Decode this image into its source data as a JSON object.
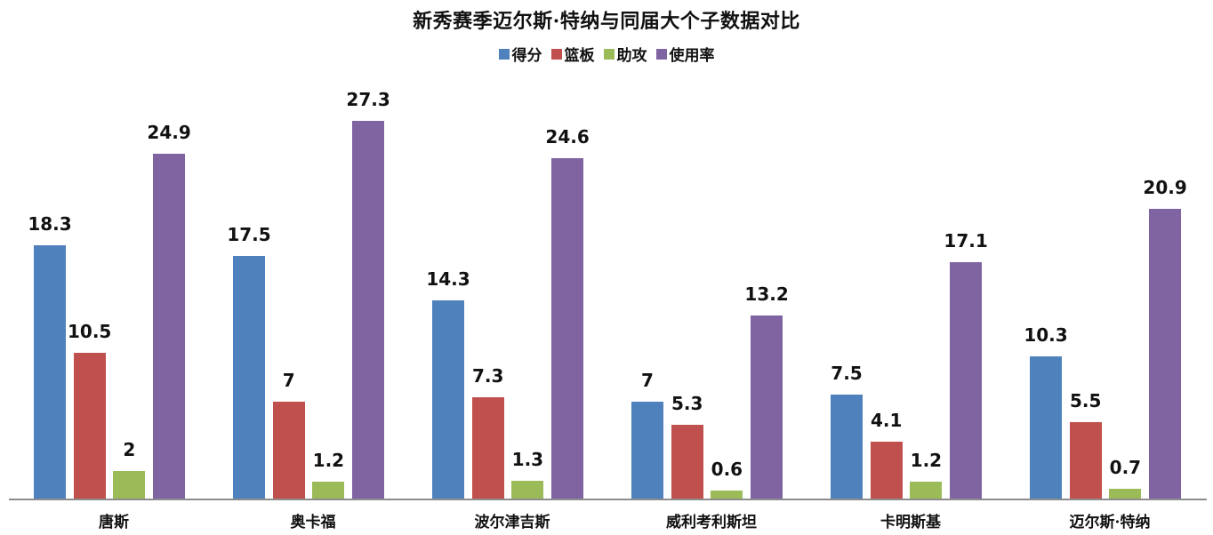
{
  "chart_data": {
    "type": "bar",
    "title": "新秀赛季迈尔斯·特纳与同届大个子数据对比",
    "xlabel": "",
    "ylabel": "",
    "categories": [
      "唐斯",
      "奥卡福",
      "波尔津吉斯",
      "威利考利斯坦",
      "卡明斯基",
      "迈尔斯·特纳"
    ],
    "series": [
      {
        "name": "得分",
        "color": "#4f81bd",
        "values": [
          18.3,
          17.5,
          14.3,
          7,
          7.5,
          10.3
        ]
      },
      {
        "name": "篮板",
        "color": "#c0504d",
        "values": [
          10.5,
          7,
          7.3,
          5.3,
          4.1,
          5.5
        ]
      },
      {
        "name": "助攻",
        "color": "#9bbb59",
        "values": [
          2,
          1.2,
          1.3,
          0.6,
          1.2,
          0.7
        ]
      },
      {
        "name": "使用率",
        "color": "#8064a2",
        "values": [
          24.9,
          27.3,
          24.6,
          13.2,
          17.1,
          20.9
        ]
      }
    ],
    "legend_position": "top",
    "grid": false,
    "ylim": [
      0,
      30
    ],
    "data_labels": true
  }
}
